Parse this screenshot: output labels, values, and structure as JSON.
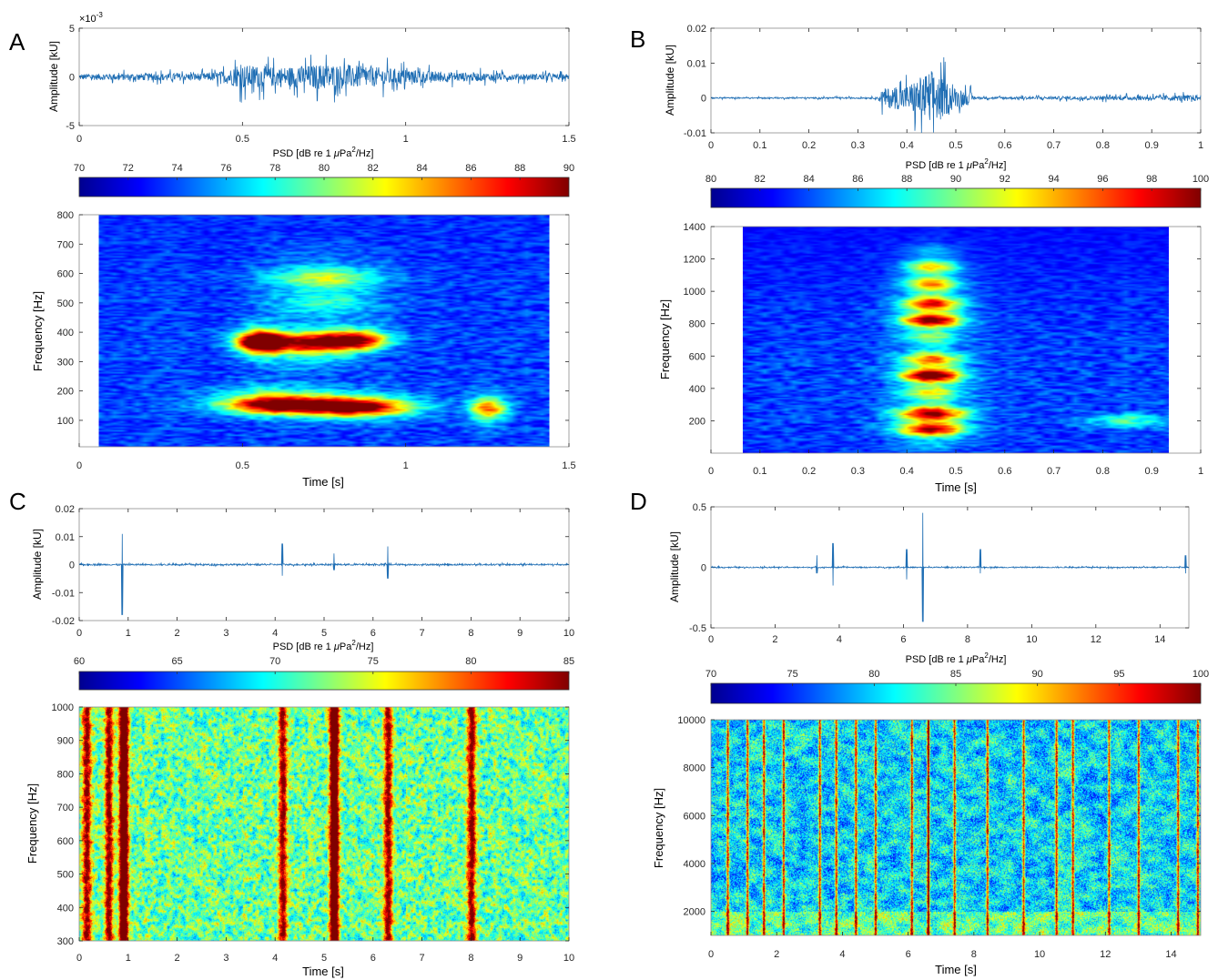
{
  "figure": {
    "colormap": [
      "#00008f",
      "#0000ff",
      "#0080ff",
      "#00ffff",
      "#80ff80",
      "#ffff00",
      "#ff8000",
      "#ff0000",
      "#800000"
    ],
    "waveform_color": "#1f6eb4",
    "axis_color": "#262626"
  },
  "chart_data": [
    {
      "panel": "A",
      "type": "heatmap",
      "waveform": {
        "ylabel": "Amplitude [kU]",
        "y_exponent": "×10",
        "y_exponent_power": "-3",
        "xlim": [
          0,
          1.5
        ],
        "ylim": [
          -5,
          5
        ],
        "xticks": [
          "0",
          "0.5",
          "1",
          "1.5"
        ],
        "yticks": [
          "5",
          "0",
          "-5"
        ],
        "xtick_values": [
          0,
          0.5,
          1,
          1.5
        ],
        "ytick_values": [
          5,
          0,
          -5
        ],
        "envelope": [
          [
            0,
            0.7
          ],
          [
            0.4,
            0.9
          ],
          [
            0.45,
            1.5
          ],
          [
            0.5,
            2.8
          ],
          [
            0.6,
            2.2
          ],
          [
            0.7,
            2.6
          ],
          [
            0.75,
            3.0
          ],
          [
            0.85,
            2.6
          ],
          [
            0.95,
            2.0
          ],
          [
            1.1,
            1.2
          ],
          [
            1.3,
            0.8
          ],
          [
            1.5,
            0.6
          ]
        ]
      },
      "colorbar": {
        "label_prefix": "PSD [dB re 1 ",
        "label_mu": "μ",
        "label_mid": "Pa",
        "label_sup": "2",
        "label_suffix": "/Hz]",
        "range": [
          70,
          90
        ],
        "ticks": [
          "70",
          "72",
          "74",
          "76",
          "78",
          "80",
          "82",
          "84",
          "86",
          "88",
          "90"
        ],
        "tick_values": [
          70,
          72,
          74,
          76,
          78,
          80,
          82,
          84,
          86,
          88,
          90
        ]
      },
      "spectrogram": {
        "xlabel": "Time [s]",
        "ylabel": "Frequency [Hz]",
        "xlim": [
          0,
          1.5
        ],
        "ylim": [
          10,
          800
        ],
        "data_x_range": [
          0.06,
          1.44
        ],
        "xticks": [
          "0",
          "0.5",
          "1",
          "1.5"
        ],
        "xtick_values": [
          0,
          0.5,
          1,
          1.5
        ],
        "yticks": [
          "800",
          "700",
          "600",
          "500",
          "400",
          "300",
          "200",
          "100"
        ],
        "ytick_values": [
          800,
          700,
          600,
          500,
          400,
          300,
          200,
          100
        ],
        "hotspots": [
          {
            "t": 0.55,
            "f": 370,
            "st": 0.05,
            "sf": 35,
            "a": 1.0
          },
          {
            "t": 0.7,
            "f": 360,
            "st": 0.1,
            "sf": 40,
            "a": 0.8
          },
          {
            "t": 0.85,
            "f": 380,
            "st": 0.07,
            "sf": 30,
            "a": 0.7
          },
          {
            "t": 0.6,
            "f": 165,
            "st": 0.12,
            "sf": 30,
            "a": 1.0
          },
          {
            "t": 0.85,
            "f": 150,
            "st": 0.12,
            "sf": 30,
            "a": 0.9
          },
          {
            "t": 1.25,
            "f": 140,
            "st": 0.04,
            "sf": 40,
            "a": 0.6
          },
          {
            "t": 0.75,
            "f": 560,
            "st": 0.12,
            "sf": 60,
            "a": 0.45
          }
        ]
      }
    },
    {
      "panel": "B",
      "type": "heatmap",
      "waveform": {
        "ylabel": "Amplitude [kU]",
        "xlim": [
          0,
          1
        ],
        "ylim": [
          -0.01,
          0.02
        ],
        "xticks": [
          "0",
          "0.1",
          "0.2",
          "0.3",
          "0.4",
          "0.5",
          "0.6",
          "0.7",
          "0.8",
          "0.9",
          "1"
        ],
        "yticks": [
          "0.02",
          "0.01",
          "0",
          "-0.01"
        ],
        "xtick_values": [
          0,
          0.1,
          0.2,
          0.3,
          0.4,
          0.5,
          0.6,
          0.7,
          0.8,
          0.9,
          1
        ],
        "ytick_values": [
          0.02,
          0.01,
          0,
          -0.01
        ],
        "envelope": [
          [
            0,
            0.0004
          ],
          [
            0.34,
            0.0005
          ],
          [
            0.35,
            0.006
          ],
          [
            0.4,
            0.008
          ],
          [
            0.45,
            0.018
          ],
          [
            0.5,
            0.006
          ],
          [
            0.53,
            0.004
          ],
          [
            0.54,
            0.0006
          ],
          [
            0.9,
            0.0015
          ],
          [
            1.0,
            0.002
          ]
        ]
      },
      "colorbar": {
        "label_prefix": "PSD [dB re 1 ",
        "label_mu": "μ",
        "label_mid": "Pa",
        "label_sup": "2",
        "label_suffix": "/Hz]",
        "range": [
          80,
          100
        ],
        "ticks": [
          "80",
          "82",
          "84",
          "86",
          "88",
          "90",
          "92",
          "94",
          "96",
          "98",
          "100"
        ],
        "tick_values": [
          80,
          82,
          84,
          86,
          88,
          90,
          92,
          94,
          96,
          98,
          100
        ]
      },
      "spectrogram": {
        "xlabel": "Time [s]",
        "ylabel": "Frequency [Hz]",
        "xlim": [
          0,
          1
        ],
        "ylim": [
          0,
          1400
        ],
        "data_x_range": [
          0.065,
          0.935
        ],
        "xticks": [
          "0",
          "0.1",
          "0.2",
          "0.3",
          "0.4",
          "0.5",
          "0.6",
          "0.7",
          "0.8",
          "0.9",
          "1"
        ],
        "xtick_values": [
          0,
          0.1,
          0.2,
          0.3,
          0.4,
          0.5,
          0.6,
          0.7,
          0.8,
          0.9,
          1
        ],
        "yticks": [
          "1400",
          "1200",
          "1000",
          "800",
          "600",
          "400",
          "200"
        ],
        "ytick_values": [
          1400,
          1200,
          1000,
          800,
          600,
          400,
          200
        ],
        "hotspots": [
          {
            "t": 0.45,
            "f": 200,
            "st": 0.05,
            "sf": 80,
            "a": 1.0
          },
          {
            "t": 0.45,
            "f": 500,
            "st": 0.045,
            "sf": 90,
            "a": 0.95
          },
          {
            "t": 0.45,
            "f": 850,
            "st": 0.045,
            "sf": 90,
            "a": 0.9
          },
          {
            "t": 0.45,
            "f": 1100,
            "st": 0.04,
            "sf": 100,
            "a": 0.6
          },
          {
            "t": 0.85,
            "f": 200,
            "st": 0.06,
            "sf": 25,
            "a": 0.5
          }
        ]
      }
    },
    {
      "panel": "C",
      "type": "heatmap",
      "waveform": {
        "ylabel": "Amplitude [kU]",
        "xlim": [
          0,
          10
        ],
        "ylim": [
          -0.02,
          0.02
        ],
        "xticks": [
          "0",
          "1",
          "2",
          "3",
          "4",
          "5",
          "6",
          "7",
          "8",
          "9",
          "10"
        ],
        "yticks": [
          "0.02",
          "0.01",
          "0",
          "-0.01",
          "-0.02"
        ],
        "xtick_values": [
          0,
          1,
          2,
          3,
          4,
          5,
          6,
          7,
          8,
          9,
          10
        ],
        "ytick_values": [
          0.02,
          0.01,
          0,
          -0.01,
          -0.02
        ],
        "spikes": [
          [
            0.88,
            0.011,
            -0.018
          ],
          [
            4.15,
            0.0075,
            -0.004
          ],
          [
            5.2,
            0.004,
            -0.002
          ],
          [
            6.3,
            0.0065,
            -0.005
          ]
        ],
        "noise": 0.0006
      },
      "colorbar": {
        "label_prefix": "PSD [dB re 1 ",
        "label_mu": "μ",
        "label_mid": "Pa",
        "label_sup": "2",
        "label_suffix": "/Hz]",
        "range": [
          60,
          85
        ],
        "ticks": [
          "60",
          "65",
          "70",
          "75",
          "80",
          "85"
        ],
        "tick_values": [
          60,
          65,
          70,
          75,
          80,
          85
        ]
      },
      "spectrogram": {
        "xlabel": "Time [s]",
        "ylabel": "Frequency [Hz]",
        "xlim": [
          0,
          10
        ],
        "ylim": [
          300,
          1000
        ],
        "data_x_range": [
          0,
          10
        ],
        "xticks": [
          "0",
          "1",
          "2",
          "3",
          "4",
          "5",
          "6",
          "7",
          "8",
          "9",
          "10"
        ],
        "xtick_values": [
          0,
          1,
          2,
          3,
          4,
          5,
          6,
          7,
          8,
          9,
          10
        ],
        "yticks": [
          "1000",
          "900",
          "800",
          "700",
          "600",
          "500",
          "400",
          "300"
        ],
        "ytick_values": [
          1000,
          900,
          800,
          700,
          600,
          500,
          400,
          300
        ],
        "stripes": [
          0.15,
          0.6,
          0.9,
          4.15,
          5.2,
          6.3,
          8.0
        ],
        "speckle": true
      }
    },
    {
      "panel": "D",
      "type": "heatmap",
      "waveform": {
        "ylabel": "Amplitude [kU]",
        "xlim": [
          0,
          14.9
        ],
        "ylim": [
          -0.5,
          0.5
        ],
        "xticks": [
          "0",
          "2",
          "4",
          "6",
          "8",
          "10",
          "12",
          "14"
        ],
        "yticks": [
          "0.5",
          "0",
          "-0.5"
        ],
        "xtick_values": [
          0,
          2,
          4,
          6,
          8,
          10,
          12,
          14
        ],
        "ytick_values": [
          0.5,
          0,
          -0.5
        ],
        "spikes": [
          [
            3.3,
            0.1,
            -0.05
          ],
          [
            3.8,
            0.2,
            -0.15
          ],
          [
            6.1,
            0.15,
            -0.1
          ],
          [
            6.6,
            0.45,
            -0.45
          ],
          [
            8.4,
            0.15,
            -0.05
          ],
          [
            14.8,
            0.1,
            -0.05
          ]
        ],
        "noise": 0.01
      },
      "colorbar": {
        "label_prefix": "PSD [dB re 1 ",
        "label_mu": "μ",
        "label_mid": "Pa",
        "label_sup": "2",
        "label_suffix": "/Hz]",
        "range": [
          70,
          100
        ],
        "ticks": [
          "70",
          "75",
          "80",
          "85",
          "90",
          "95",
          "100"
        ],
        "tick_values": [
          70,
          75,
          80,
          85,
          90,
          95,
          100
        ]
      },
      "spectrogram": {
        "xlabel": "Time [s]",
        "ylabel": "Frequency [Hz]",
        "xlim": [
          0,
          14.9
        ],
        "ylim": [
          1000,
          10000
        ],
        "data_x_range": [
          0,
          14.9
        ],
        "xticks": [
          "0",
          "2",
          "4",
          "6",
          "8",
          "10",
          "12",
          "14"
        ],
        "xtick_values": [
          0,
          2,
          4,
          6,
          8,
          10,
          12,
          14
        ],
        "yticks": [
          "10000",
          "8000",
          "6000",
          "4000",
          "2000"
        ],
        "ytick_values": [
          10000,
          8000,
          6000,
          4000,
          2000
        ],
        "stripes": [
          0.5,
          1.1,
          1.6,
          2.2,
          3.3,
          3.8,
          4.4,
          5.0,
          6.1,
          6.6,
          7.4,
          8.4,
          9.5,
          10.5,
          11.0,
          12.1,
          13.0,
          14.2,
          14.8
        ],
        "speckle": true
      }
    }
  ]
}
